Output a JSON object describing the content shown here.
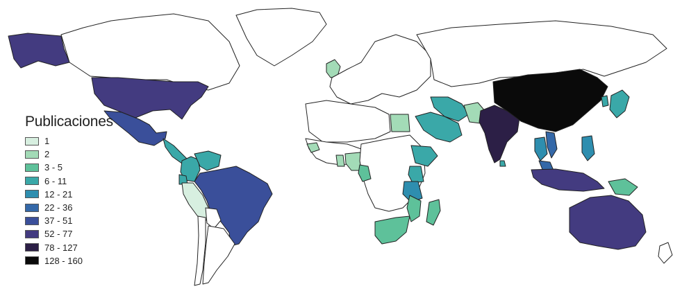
{
  "legend": {
    "title": "Publicaciones",
    "items": [
      {
        "label": "1",
        "color": "#d7efe0"
      },
      {
        "label": "2",
        "color": "#a3dbb7"
      },
      {
        "label": "3 - 5",
        "color": "#5ec19a"
      },
      {
        "label": "6 - 11",
        "color": "#3aa8a8"
      },
      {
        "label": "12 - 21",
        "color": "#2e8eaf"
      },
      {
        "label": "22 - 36",
        "color": "#3468a8"
      },
      {
        "label": "37 - 51",
        "color": "#3a4f9a"
      },
      {
        "label": "52 - 77",
        "color": "#433b80"
      },
      {
        "label": "78 - 127",
        "color": "#2c1f46"
      },
      {
        "label": "128 - 160",
        "color": "#0a0a0a"
      }
    ]
  },
  "map": {
    "ocean_color": "#ffffff",
    "no_data_color": "#ffffff",
    "border_color": "#222222",
    "countries": [
      {
        "id": "canada",
        "class": "none"
      },
      {
        "id": "greenland",
        "class": "none"
      },
      {
        "id": "alaska",
        "class": "52 - 77"
      },
      {
        "id": "usa",
        "class": "52 - 77"
      },
      {
        "id": "mexico",
        "class": "37 - 51"
      },
      {
        "id": "central-america",
        "class": "6 - 11"
      },
      {
        "id": "colombia",
        "class": "6 - 11"
      },
      {
        "id": "venezuela",
        "class": "6 - 11"
      },
      {
        "id": "ecuador",
        "class": "6 - 11"
      },
      {
        "id": "peru",
        "class": "1"
      },
      {
        "id": "brazil",
        "class": "37 - 51"
      },
      {
        "id": "bolivia",
        "class": "none"
      },
      {
        "id": "argentina",
        "class": "none"
      },
      {
        "id": "chile",
        "class": "none"
      },
      {
        "id": "uk",
        "class": "2"
      },
      {
        "id": "europe",
        "class": "none"
      },
      {
        "id": "russia",
        "class": "none"
      },
      {
        "id": "north-africa",
        "class": "none"
      },
      {
        "id": "egypt",
        "class": "2"
      },
      {
        "id": "west-africa",
        "class": "none"
      },
      {
        "id": "senegal",
        "class": "2"
      },
      {
        "id": "nigeria",
        "class": "2"
      },
      {
        "id": "ghana",
        "class": "2"
      },
      {
        "id": "central-africa",
        "class": "none"
      },
      {
        "id": "cameroon",
        "class": "3 - 5"
      },
      {
        "id": "ethiopia",
        "class": "6 - 11"
      },
      {
        "id": "kenya",
        "class": "6 - 11"
      },
      {
        "id": "tanzania",
        "class": "12 - 21"
      },
      {
        "id": "south-africa",
        "class": "3 - 5"
      },
      {
        "id": "mozambique",
        "class": "3 - 5"
      },
      {
        "id": "madagascar",
        "class": "3 - 5"
      },
      {
        "id": "arabia",
        "class": "6 - 11"
      },
      {
        "id": "iran",
        "class": "6 - 11"
      },
      {
        "id": "pakistan",
        "class": "2"
      },
      {
        "id": "india",
        "class": "78 - 127"
      },
      {
        "id": "sri-lanka",
        "class": "6 - 11"
      },
      {
        "id": "china",
        "class": "128 - 160"
      },
      {
        "id": "japan",
        "class": "6 - 11"
      },
      {
        "id": "korea",
        "class": "6 - 11"
      },
      {
        "id": "thailand",
        "class": "12 - 21"
      },
      {
        "id": "vietnam",
        "class": "22 - 36"
      },
      {
        "id": "philippines",
        "class": "12 - 21"
      },
      {
        "id": "malaysia",
        "class": "22 - 36"
      },
      {
        "id": "indonesia",
        "class": "52 - 77"
      },
      {
        "id": "papua-new-guinea",
        "class": "3 - 5"
      },
      {
        "id": "australia",
        "class": "52 - 77"
      },
      {
        "id": "new-zealand",
        "class": "none"
      }
    ]
  }
}
